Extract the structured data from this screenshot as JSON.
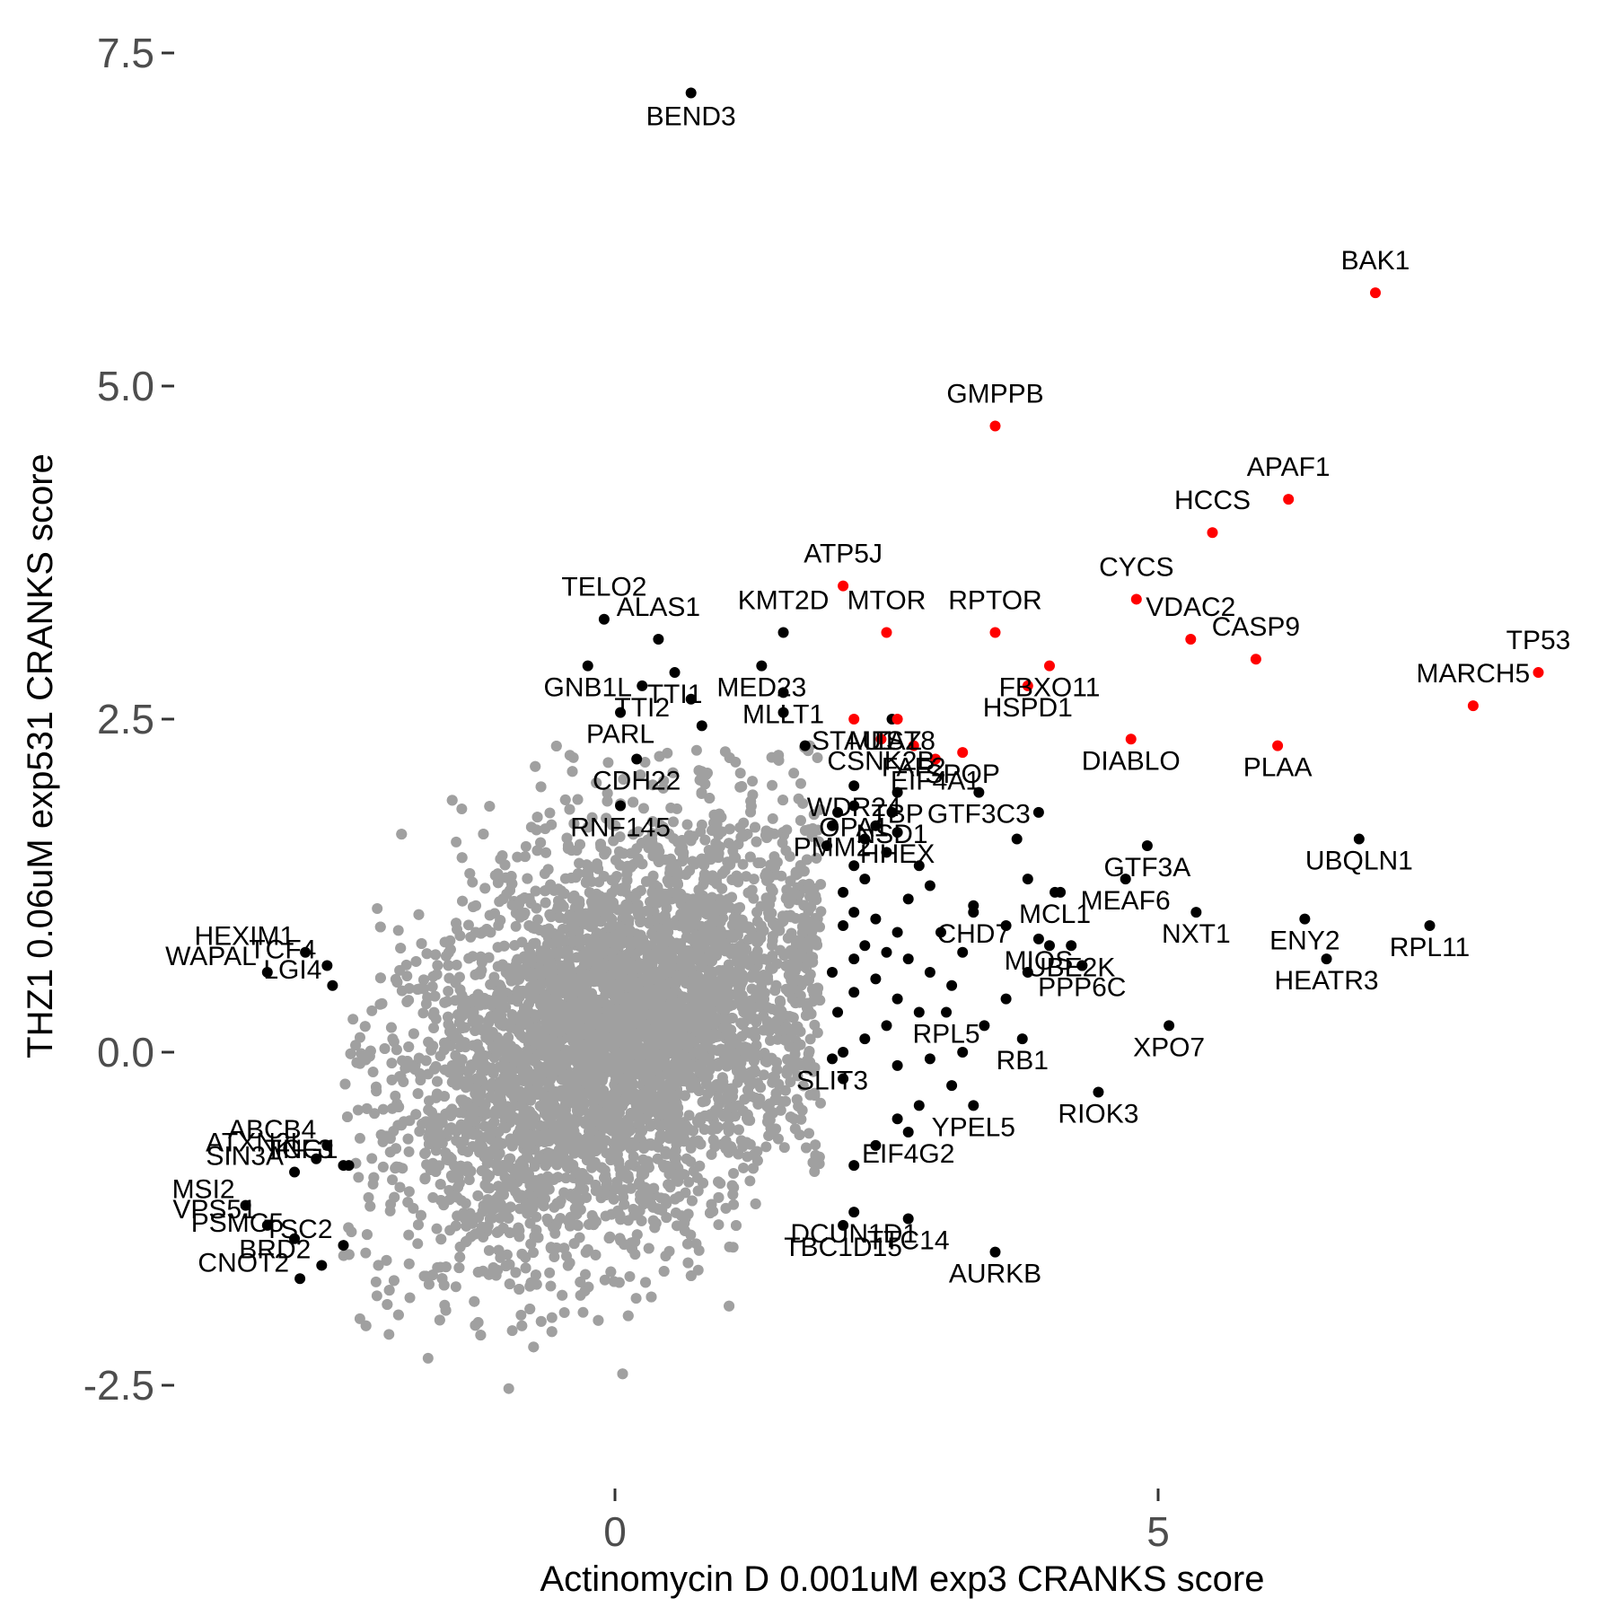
{
  "chart_data": {
    "type": "scatter",
    "xlabel": "Actinomycin D 0.001uM exp3 CRANKS score",
    "ylabel": "THZ1 0.06uM exp531 CRANKS score",
    "xlim": [
      -4.1,
      8.7
    ],
    "ylim": [
      -3.05,
      7.75
    ],
    "x_ticks": [
      0,
      5
    ],
    "y_ticks": [
      -2.5,
      0.0,
      2.5,
      5.0,
      7.5
    ],
    "x_tick_labels": [
      "0",
      "5"
    ],
    "y_tick_labels": [
      "-2.5",
      "0.0",
      "2.5",
      "5.0",
      "7.5"
    ],
    "grid": false,
    "colors": {
      "background": "#a0a0a0",
      "hit": "#000000",
      "highlight": "#ff0000",
      "ticks": "#4d4d4d"
    },
    "background_cloud": {
      "n": 6500,
      "x_mean": 0.0,
      "y_mean": 0.1,
      "x_sd": 0.95,
      "y_sd": 0.8,
      "rho": 0.35
    },
    "highlighted_points": [
      {
        "label": "BAK1",
        "x": 7.0,
        "y": 5.7
      },
      {
        "label": "GMPPB",
        "x": 3.5,
        "y": 4.7
      },
      {
        "label": "APAF1",
        "x": 6.2,
        "y": 4.15
      },
      {
        "label": "HCCS",
        "x": 5.5,
        "y": 3.9
      },
      {
        "label": "ATP5J",
        "x": 2.1,
        "y": 3.5
      },
      {
        "label": "CYCS",
        "x": 4.8,
        "y": 3.4
      },
      {
        "label": "RPTOR",
        "x": 3.5,
        "y": 3.15
      },
      {
        "label": "MTOR",
        "x": 2.5,
        "y": 3.15
      },
      {
        "label": "VDAC2",
        "x": 5.3,
        "y": 3.1
      },
      {
        "label": "CASP9",
        "x": 5.9,
        "y": 2.95
      },
      {
        "label": "FBXO11",
        "x": 4.0,
        "y": 2.9
      },
      {
        "label": "TP53",
        "x": 8.5,
        "y": 2.85
      },
      {
        "label": "HSPD1",
        "x": 3.8,
        "y": 2.75
      },
      {
        "label": "MARCH5",
        "x": 7.9,
        "y": 2.6
      },
      {
        "label": "STAU1",
        "x": 2.2,
        "y": 2.5
      },
      {
        "label": "TAZ",
        "x": 2.6,
        "y": 2.5
      },
      {
        "label": "DIABLO",
        "x": 4.75,
        "y": 2.35
      },
      {
        "label": "CSNK2B",
        "x": 2.45,
        "y": 2.35
      },
      {
        "label": "PLAA",
        "x": 6.1,
        "y": 2.3
      },
      {
        "label": "FAF2",
        "x": 2.75,
        "y": 2.3
      },
      {
        "label": "SPOP",
        "x": 3.2,
        "y": 2.25
      },
      {
        "label": "EIF4A1",
        "x": 2.95,
        "y": 2.2
      }
    ],
    "labeled_points": [
      {
        "label": "BEND3",
        "x": 0.7,
        "y": 7.2
      },
      {
        "label": "TELO2",
        "x": -0.1,
        "y": 3.25
      },
      {
        "label": "ALAS1",
        "x": 0.4,
        "y": 3.1
      },
      {
        "label": "KMT2D",
        "x": 1.55,
        "y": 3.15
      },
      {
        "label": "MED23",
        "x": 1.35,
        "y": 2.9
      },
      {
        "label": "TTI1",
        "x": 0.55,
        "y": 2.85
      },
      {
        "label": "TTI2",
        "x": 0.25,
        "y": 2.75
      },
      {
        "label": "GNB1L",
        "x": -0.25,
        "y": 2.9
      },
      {
        "label": "MLST8",
        "x": 2.55,
        "y": 2.5
      },
      {
        "label": "PARL",
        "x": 0.05,
        "y": 2.55
      },
      {
        "label": "CDH22",
        "x": 0.2,
        "y": 2.2
      },
      {
        "label": "MLLT1",
        "x": 1.55,
        "y": 2.7
      },
      {
        "label": "RNF145",
        "x": 0.05,
        "y": 1.85
      },
      {
        "label": "OPA1",
        "x": 2.2,
        "y": 1.85
      },
      {
        "label": "WDR24",
        "x": 2.2,
        "y": 2.0
      },
      {
        "label": "TBP",
        "x": 2.6,
        "y": 1.95
      },
      {
        "label": "PMM2",
        "x": 2.0,
        "y": 1.7
      },
      {
        "label": "NSD1",
        "x": 2.55,
        "y": 1.8
      },
      {
        "label": "HHEX",
        "x": 2.6,
        "y": 1.65
      },
      {
        "label": "GTF3C3",
        "x": 3.35,
        "y": 1.95
      },
      {
        "label": "MCL1",
        "x": 4.05,
        "y": 1.2
      },
      {
        "label": "CHD7",
        "x": 3.3,
        "y": 1.05
      },
      {
        "label": "GTF3A",
        "x": 4.9,
        "y": 1.55
      },
      {
        "label": "MEAF6",
        "x": 4.7,
        "y": 1.3
      },
      {
        "label": "UBQLN1",
        "x": 6.85,
        "y": 1.6
      },
      {
        "label": "ENY2",
        "x": 6.35,
        "y": 1.0
      },
      {
        "label": "RPL11",
        "x": 7.5,
        "y": 0.95
      },
      {
        "label": "NXT1",
        "x": 5.35,
        "y": 1.05
      },
      {
        "label": "HEATR3",
        "x": 6.55,
        "y": 0.7
      },
      {
        "label": "UBE2K",
        "x": 4.2,
        "y": 0.8
      },
      {
        "label": "MIOS",
        "x": 3.9,
        "y": 0.85
      },
      {
        "label": "PPP6C",
        "x": 4.3,
        "y": 0.65
      },
      {
        "label": "RPL5",
        "x": 3.05,
        "y": 0.3
      },
      {
        "label": "RB1",
        "x": 3.75,
        "y": 0.1
      },
      {
        "label": "XPO7",
        "x": 5.1,
        "y": 0.2
      },
      {
        "label": "SLIT3",
        "x": 2.0,
        "y": -0.05
      },
      {
        "label": "YPEL5",
        "x": 3.3,
        "y": -0.4
      },
      {
        "label": "RIOK3",
        "x": 4.45,
        "y": -0.3
      },
      {
        "label": "EIF4G2",
        "x": 2.7,
        "y": -0.6
      },
      {
        "label": "DCUN1D1",
        "x": 2.2,
        "y": -1.2
      },
      {
        "label": "TTC14",
        "x": 2.7,
        "y": -1.25
      },
      {
        "label": "TBC1D15",
        "x": 2.1,
        "y": -1.3
      },
      {
        "label": "AURKB",
        "x": 3.5,
        "y": -1.5
      },
      {
        "label": "HEXIM1",
        "x": -2.85,
        "y": 0.75
      },
      {
        "label": "LGI4",
        "x": -2.6,
        "y": 0.5
      },
      {
        "label": "WAPAL",
        "x": -3.2,
        "y": 0.6
      },
      {
        "label": "TCF4",
        "x": -2.65,
        "y": 0.65
      },
      {
        "label": "ABCB4",
        "x": -2.65,
        "y": -0.7
      },
      {
        "label": "TCF3",
        "x": -2.5,
        "y": -0.85
      },
      {
        "label": "SIN3A",
        "x": -2.95,
        "y": -0.9
      },
      {
        "label": "ATXN2L",
        "x": -2.75,
        "y": -0.8
      },
      {
        "label": "ING1",
        "x": -2.45,
        "y": -0.85
      },
      {
        "label": "MSI2",
        "x": -3.4,
        "y": -1.15
      },
      {
        "label": "VPS51",
        "x": -3.2,
        "y": -1.3
      },
      {
        "label": "TSC2",
        "x": -2.5,
        "y": -1.45
      },
      {
        "label": "PSMC5",
        "x": -2.95,
        "y": -1.4
      },
      {
        "label": "BRD2",
        "x": -2.7,
        "y": -1.6
      },
      {
        "label": "CNOT2",
        "x": -2.9,
        "y": -1.7
      }
    ],
    "extra_hit_points": [
      [
        2.3,
        1.6
      ],
      [
        2.5,
        1.5
      ],
      [
        2.8,
        1.4
      ],
      [
        2.9,
        1.25
      ],
      [
        2.3,
        1.3
      ],
      [
        2.1,
        1.2
      ],
      [
        2.2,
        1.05
      ],
      [
        2.4,
        1.0
      ],
      [
        2.6,
        0.9
      ],
      [
        2.3,
        0.8
      ],
      [
        2.1,
        0.95
      ],
      [
        2.2,
        0.7
      ],
      [
        2.5,
        0.75
      ],
      [
        2.7,
        0.7
      ],
      [
        2.9,
        0.6
      ],
      [
        3.1,
        0.5
      ],
      [
        2.4,
        0.55
      ],
      [
        2.2,
        0.45
      ],
      [
        2.6,
        0.4
      ],
      [
        2.8,
        0.3
      ],
      [
        2.5,
        0.2
      ],
      [
        2.3,
        0.1
      ],
      [
        2.1,
        0.0
      ],
      [
        2.6,
        -0.1
      ],
      [
        2.9,
        -0.05
      ],
      [
        3.2,
        0.0
      ],
      [
        3.4,
        0.2
      ],
      [
        3.6,
        0.4
      ],
      [
        3.8,
        0.6
      ],
      [
        4.0,
        0.8
      ],
      [
        3.1,
        -0.25
      ],
      [
        2.8,
        -0.4
      ],
      [
        2.6,
        -0.5
      ],
      [
        2.4,
        -0.7
      ],
      [
        2.2,
        -0.85
      ],
      [
        3.0,
        0.9
      ],
      [
        3.3,
        1.1
      ],
      [
        3.6,
        0.95
      ],
      [
        3.8,
        1.3
      ],
      [
        4.1,
        1.2
      ],
      [
        4.3,
        0.65
      ],
      [
        2.0,
        0.6
      ],
      [
        2.05,
        0.3
      ],
      [
        2.1,
        -0.2
      ],
      [
        2.2,
        1.4
      ],
      [
        2.4,
        1.7
      ],
      [
        3.7,
        1.6
      ],
      [
        3.9,
        1.8
      ],
      [
        2.7,
        1.15
      ],
      [
        3.2,
        0.75
      ],
      [
        2.05,
        1.8
      ],
      [
        1.55,
        2.55
      ],
      [
        1.75,
        2.3
      ],
      [
        0.8,
        2.45
      ],
      [
        0.7,
        2.65
      ],
      [
        1.95,
        1.55
      ]
    ]
  }
}
